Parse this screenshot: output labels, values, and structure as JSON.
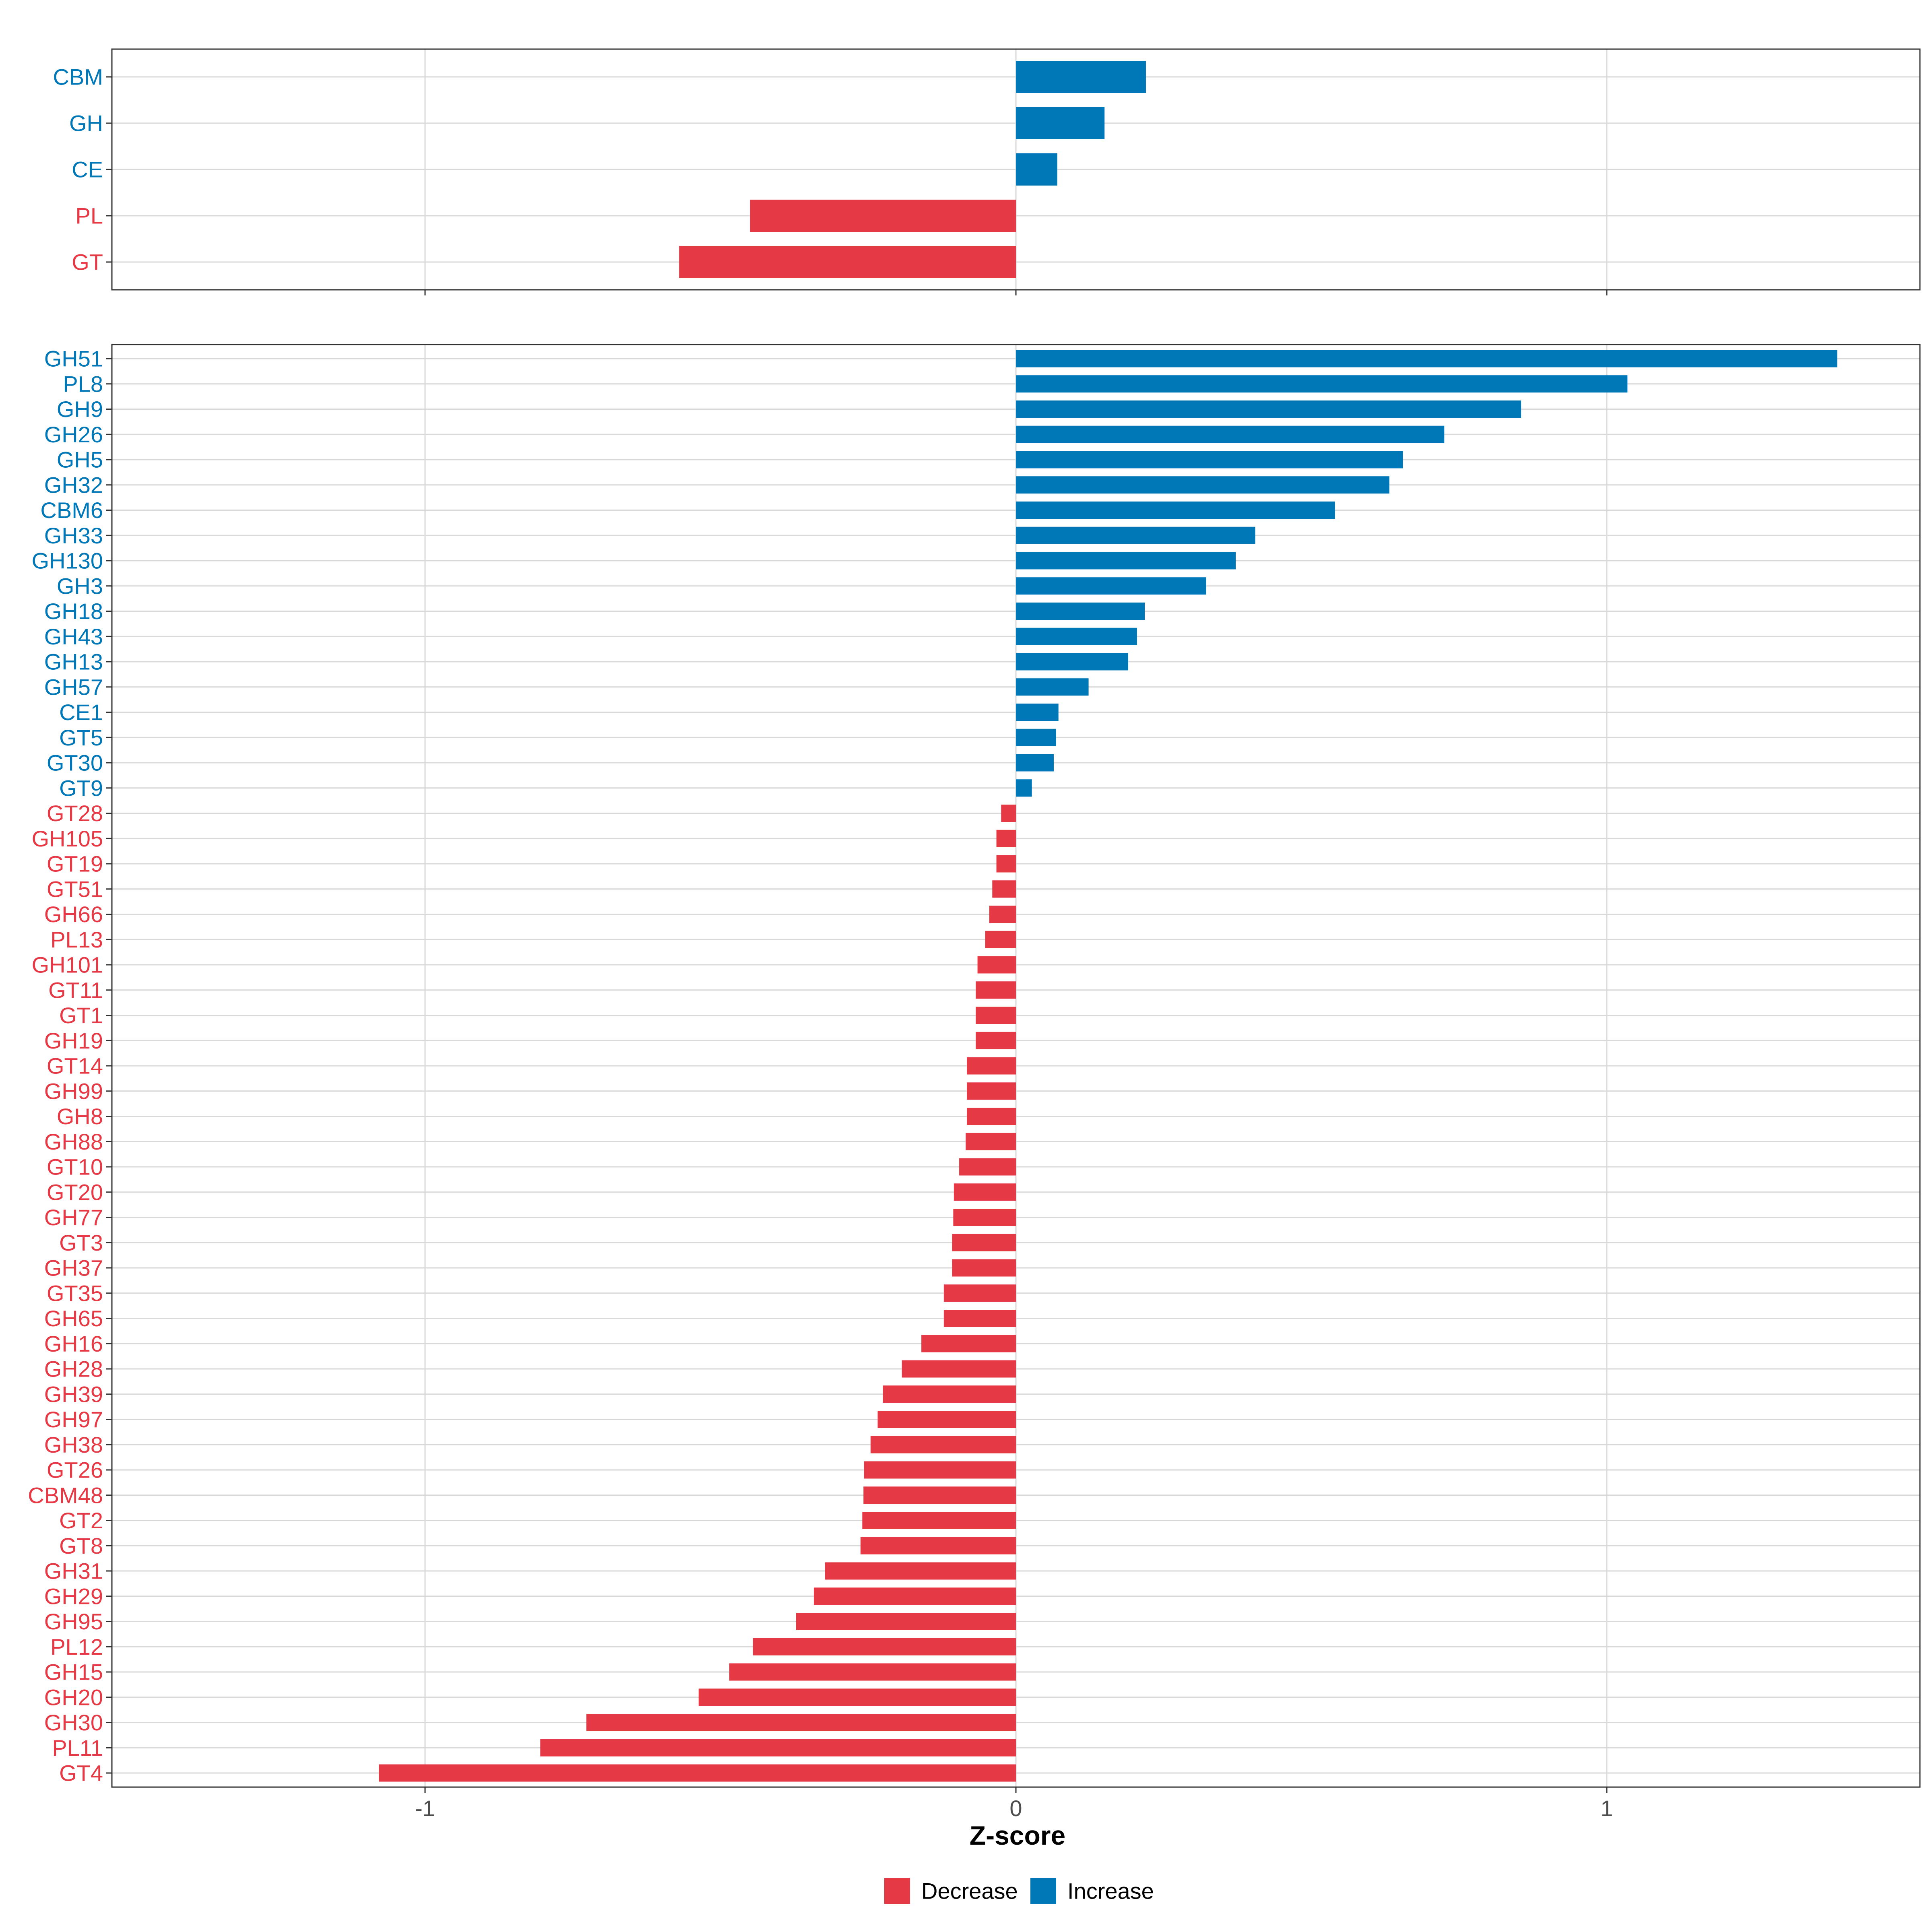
{
  "colors": {
    "decrease": "#E63946",
    "increase": "#0077B6"
  },
  "chart_data": [
    {
      "type": "bar",
      "orientation": "horizontal",
      "xlim": [
        -1.53,
        1.53
      ],
      "x_ticks": [
        {
          "value": -1,
          "label": "-1"
        },
        {
          "value": 0,
          "label": "0"
        },
        {
          "value": 1,
          "label": "1"
        }
      ],
      "categories": [
        "CBM",
        "GH",
        "CE",
        "PL",
        "GT"
      ],
      "values": [
        0.22,
        0.15,
        0.07,
        -0.45,
        -0.57
      ]
    },
    {
      "type": "bar",
      "orientation": "horizontal",
      "xlim": [
        -1.53,
        1.53
      ],
      "xlabel": "Z-score",
      "x_ticks": [
        {
          "value": -1,
          "label": "-1"
        },
        {
          "value": 0,
          "label": "0"
        },
        {
          "value": 1,
          "label": "1"
        }
      ],
      "categories": [
        "GH51",
        "PL8",
        "GH9",
        "GH26",
        "GH5",
        "GH32",
        "CBM6",
        "GH33",
        "GH130",
        "GH3",
        "GH18",
        "GH43",
        "GH13",
        "GH57",
        "CE1",
        "GT5",
        "GT30",
        "GT9",
        "GT28",
        "GH105",
        "GT19",
        "GT51",
        "GH66",
        "PL13",
        "GH101",
        "GT11",
        "GT1",
        "GH19",
        "GT14",
        "GH99",
        "GH8",
        "GH88",
        "GT10",
        "GT20",
        "GH77",
        "GT3",
        "GH37",
        "GT35",
        "GH65",
        "GH16",
        "GH28",
        "GH39",
        "GH97",
        "GH38",
        "GT26",
        "CBM48",
        "GT2",
        "GT8",
        "GH31",
        "GH29",
        "GH95",
        "PL12",
        "GH15",
        "GH20",
        "GH30",
        "PL11",
        "GT4"
      ],
      "values": [
        1.39,
        1.035,
        0.855,
        0.725,
        0.655,
        0.632,
        0.54,
        0.405,
        0.372,
        0.322,
        0.218,
        0.205,
        0.19,
        0.123,
        0.072,
        0.068,
        0.064,
        0.027,
        -0.025,
        -0.033,
        -0.033,
        -0.04,
        -0.045,
        -0.052,
        -0.065,
        -0.068,
        -0.068,
        -0.068,
        -0.083,
        -0.083,
        -0.083,
        -0.085,
        -0.096,
        -0.105,
        -0.106,
        -0.108,
        -0.108,
        -0.122,
        -0.122,
        -0.16,
        -0.193,
        -0.225,
        -0.234,
        -0.246,
        -0.257,
        -0.258,
        -0.26,
        -0.263,
        -0.323,
        -0.342,
        -0.372,
        -0.445,
        -0.485,
        -0.537,
        -0.727,
        -0.805,
        -1.078
      ]
    }
  ],
  "legend": {
    "position": "bottom",
    "items": [
      {
        "label": "Decrease",
        "key": "decrease"
      },
      {
        "label": "Increase",
        "key": "increase"
      }
    ]
  }
}
